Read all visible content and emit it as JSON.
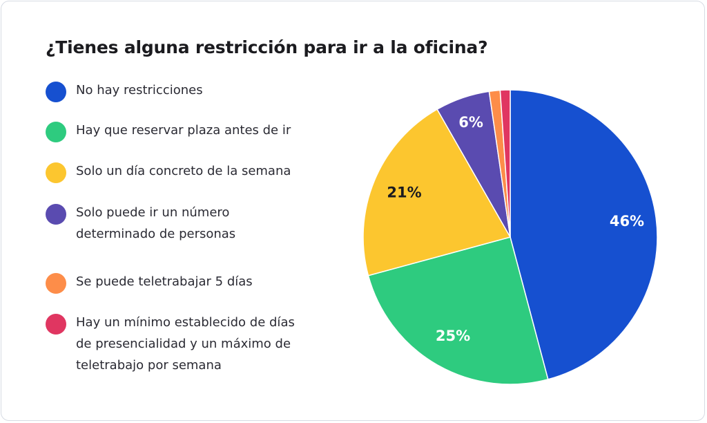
{
  "chart_data": {
    "type": "pie",
    "title": "¿Tienes alguna restricción para ir a la oficina?",
    "slices": [
      {
        "label": "No hay restricciones",
        "value": 46,
        "display": "46%",
        "color": "#1650d0",
        "label_color": "#ffffff"
      },
      {
        "label": "Hay que reservar plaza antes de ir",
        "value": 25,
        "display": "25%",
        "color": "#2ecb7f",
        "label_color": "#ffffff"
      },
      {
        "label": "Solo un día concreto de la semana",
        "value": 21,
        "display": "21%",
        "color": "#fcc62f",
        "label_color": "#1b1b1f"
      },
      {
        "label": "Solo puede ir un número determinado de personas",
        "value": 6,
        "display": "6%",
        "color": "#5a4bb0",
        "label_color": "#ffffff"
      },
      {
        "label": "Se puede teletrabajar 5 días",
        "value": 1.2,
        "display": "",
        "color": "#fd8d49",
        "label_color": "#ffffff"
      },
      {
        "label": "Hay un mínimo establecido de días de presencialidad y un máximo de teletrabajo por semana",
        "value": 1.1,
        "display": "",
        "color": "#e03661",
        "label_color": "#ffffff"
      }
    ]
  },
  "legend": {
    "items": [
      {
        "line1": "No hay restricciones",
        "line2": "",
        "line3": ""
      },
      {
        "line1": "Hay que reservar plaza antes de ir",
        "line2": "",
        "line3": ""
      },
      {
        "line1": "Solo un día concreto de la semana",
        "line2": "",
        "line3": ""
      },
      {
        "line1": "Solo puede ir un número",
        "line2": "determinado de personas",
        "line3": ""
      },
      {
        "line1": "Se puede teletrabajar 5 días",
        "line2": "",
        "line3": ""
      },
      {
        "line1": "Hay un mínimo establecido de días",
        "line2": "de presencialidad y un máximo de",
        "line3": "teletrabajo por semana"
      }
    ]
  }
}
